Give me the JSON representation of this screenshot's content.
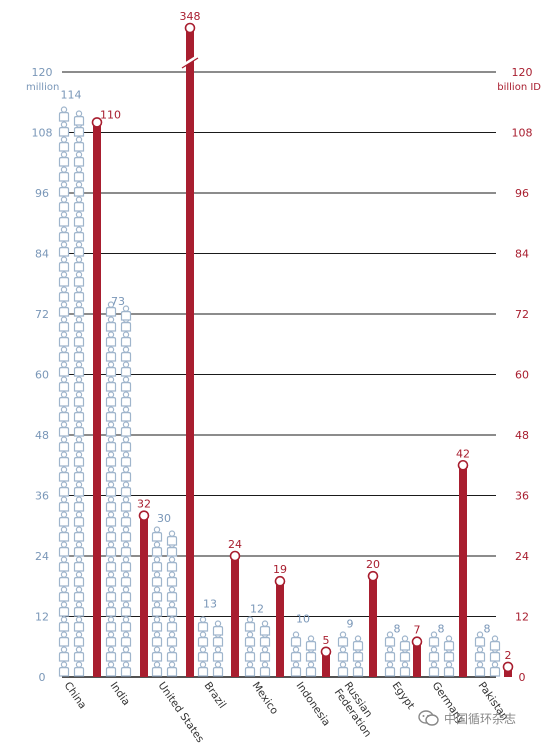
{
  "chart_data": {
    "type": "bar",
    "left_axis_unit": "million",
    "right_axis_unit": "billion ID",
    "ylim": [
      0,
      120
    ],
    "ticks": [
      0,
      12,
      24,
      36,
      48,
      60,
      72,
      84,
      96,
      108,
      120
    ],
    "grid": true,
    "axis_break": "United States bar truncated above 120",
    "categories": [
      "China",
      "India",
      "United States",
      "Brazil",
      "Mexico",
      "Indonesia",
      "Russian Federation",
      "Egypt",
      "Germany",
      "Pakistan"
    ],
    "series": [
      {
        "values": [
          114,
          73,
          30,
          13,
          12,
          10,
          9,
          8,
          8,
          8
        ],
        "marker": "person-icon-stack",
        "color": "#8aa3bf"
      },
      {
        "values": [
          110,
          32,
          348,
          24,
          19,
          5,
          20,
          7,
          42,
          2
        ],
        "marker": "bar",
        "color": "#a81e2f"
      }
    ]
  },
  "colors": {
    "left_axis": "#7a97b8",
    "right_axis": "#a81e2f",
    "person": "#9fb5cc",
    "bar": "#a81e2f"
  },
  "watermark": {
    "text": "中国循环杂志"
  }
}
